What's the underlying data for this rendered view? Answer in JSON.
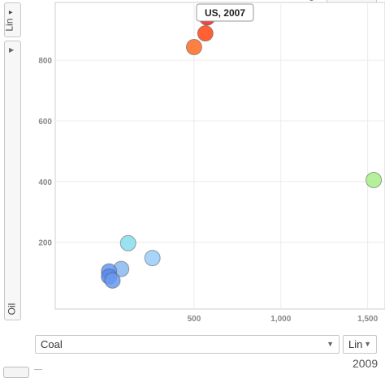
{
  "y_axis_control": {
    "scale_label": "Lin",
    "scale_arrow": "▼",
    "metric_label": "Oil",
    "expand_arrow": "▶"
  },
  "x_axis_control": {
    "metric_label": "Coal",
    "metric_arrow": "▼",
    "scale_label": "Lin",
    "scale_arrow": "▼"
  },
  "time": {
    "year_label": "2009"
  },
  "tooltip": {
    "text": "US, 2007"
  },
  "chart_data": {
    "type": "scatter",
    "title": "",
    "xlabel": "Coal",
    "ylabel": "Oil",
    "xlim": [
      -300,
      1600
    ],
    "ylim": [
      -20,
      990
    ],
    "x_ticks": [
      500,
      1000,
      1500
    ],
    "x_tick_labels": [
      "500",
      "1,000",
      "1,500"
    ],
    "y_ticks": [
      200,
      400,
      600,
      800
    ],
    "y_tick_labels": [
      "200",
      "400",
      "600",
      "800"
    ],
    "grid": true,
    "points": [
      {
        "x": 575,
        "y": 940,
        "color": "#ee2222",
        "highlight": true
      },
      {
        "x": 565,
        "y": 888,
        "color": "#ff4411"
      },
      {
        "x": 500,
        "y": 843,
        "color": "#ff6a22"
      },
      {
        "x": 1535,
        "y": 405,
        "color": "#a8ee88"
      },
      {
        "x": 120,
        "y": 197,
        "color": "#88ddee"
      },
      {
        "x": 260,
        "y": 148,
        "color": "#99ccf8"
      },
      {
        "x": 80,
        "y": 112,
        "color": "#88b8f0"
      },
      {
        "x": 10,
        "y": 104,
        "color": "#6699ee"
      },
      {
        "x": 10,
        "y": 87,
        "color": "#5588ee"
      },
      {
        "x": 30,
        "y": 74,
        "color": "#6a99ee"
      }
    ]
  }
}
